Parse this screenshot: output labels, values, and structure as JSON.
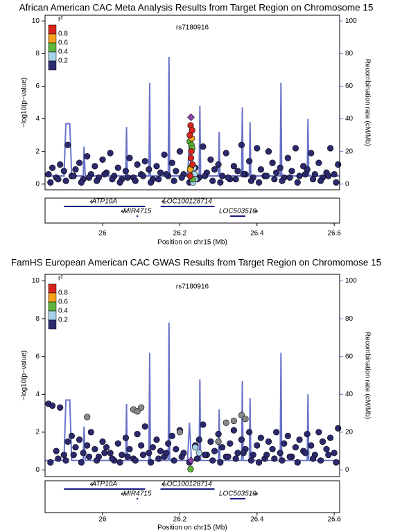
{
  "chart_data": [
    {
      "type": "scatter",
      "title": "African American  CAC Meta Analysis Results from Target Region on Chromosome 15",
      "annotation": "rs7180916",
      "x_label": "Position on chr15 (Mb)",
      "y_label": "−log10(p−value)",
      "y2_label": "Recombination rate (cM/Mb)",
      "xlim": [
        25.851,
        26.614
      ],
      "xticks": [
        26,
        26.2,
        26.4,
        26.6
      ],
      "ylim": [
        -0.35,
        10.35
      ],
      "yticks": [
        0,
        2,
        4,
        6,
        8,
        10
      ],
      "y2lim": [
        -3.5,
        103.5
      ],
      "y2ticks": [
        0,
        20,
        40,
        60,
        80,
        100
      ],
      "legend": {
        "title": "r²",
        "colors": [
          "#d7261e",
          "#f6a21a",
          "#5db53b",
          "#a7d3ea",
          "#2b2a6f"
        ],
        "labels": [
          0.8,
          0.6,
          0.4,
          0.2
        ]
      },
      "point_groups": [
        {
          "color": "#2b2a6f",
          "x": [
            25.86,
            25.87,
            25.88,
            25.89,
            25.9,
            25.91,
            25.92,
            25.93,
            25.94,
            25.95,
            25.96,
            25.97,
            25.98,
            25.99,
            26.0,
            26.01,
            26.02,
            26.03,
            26.04,
            26.05,
            26.06,
            26.07,
            26.08,
            26.09,
            26.1,
            26.11,
            26.12,
            26.13,
            26.14,
            26.15,
            26.16,
            26.17,
            26.18,
            26.19,
            26.2,
            26.21,
            26.24,
            26.25,
            26.26,
            26.27,
            26.28,
            26.29,
            26.3,
            26.31,
            26.32,
            26.33,
            26.34,
            26.35,
            26.36,
            26.37,
            26.38,
            26.39,
            26.4,
            26.41,
            26.42,
            26.43,
            26.44,
            26.45,
            26.46,
            26.47,
            26.48,
            26.49,
            26.5,
            26.51,
            26.52,
            26.53,
            26.54,
            26.55,
            26.56,
            26.57,
            26.58,
            26.59,
            26.6,
            26.61
          ],
          "y": [
            0.6,
            1.0,
            0.4,
            1.2,
            0.8,
            2.4,
            0.5,
            0.9,
            1.3,
            0.3,
            1.7,
            0.6,
            1.1,
            0.4,
            1.5,
            0.7,
            1.9,
            0.5,
            1.0,
            0.3,
            0.8,
            1.6,
            0.4,
            1.2,
            0.6,
            1.4,
            0.9,
            0.3,
            1.1,
            0.7,
            1.8,
            0.5,
            1.3,
            0.8,
            2.0,
            0.6,
            1.0,
            0.4,
            2.3,
            0.7,
            1.5,
            0.9,
            1.2,
            0.5,
            1.9,
            0.3,
            1.1,
            0.8,
            2.4,
            0.6,
            1.4,
            0.4,
            2.2,
            0.9,
            0.5,
            2.0,
            1.3,
            0.7,
            1.0,
            0.4,
            1.6,
            0.8,
            2.2,
            0.5,
            1.1,
            0.9,
            1.9,
            0.6,
            1.3,
            0.4,
            0.7,
            2.2,
            0.6,
            1.2
          ]
        },
        {
          "color": "#2b2a6f",
          "x": [
            25.865,
            25.885,
            25.905,
            25.925,
            25.945,
            25.965,
            25.985,
            26.005,
            26.025,
            26.045,
            26.065,
            26.085,
            26.105,
            26.125,
            26.145,
            26.165,
            26.185,
            26.205,
            26.225,
            26.245,
            26.265,
            26.285,
            26.305,
            26.325,
            26.345,
            26.365,
            26.385,
            26.405,
            26.425,
            26.445,
            26.465,
            26.485,
            26.505,
            26.525,
            26.545,
            26.565,
            26.585,
            26.605
          ],
          "y": [
            0.1,
            0.3,
            0.2,
            0.5,
            0.1,
            0.4,
            0.2,
            0.6,
            0.3,
            0.1,
            0.4,
            0.2,
            0.5,
            0.1,
            0.3,
            0.6,
            0.2,
            0.4,
            0.1,
            0.3,
            0.5,
            0.2,
            0.1,
            0.4,
            0.3,
            0.6,
            0.2,
            0.1,
            0.5,
            0.3,
            0.2,
            0.4,
            0.1,
            0.6,
            0.3,
            0.2,
            0.5,
            0.1
          ]
        },
        {
          "color": "#a7d3ea",
          "x": [
            26.236,
            26.238,
            26.24,
            26.234
          ],
          "y": [
            1.0,
            0.6,
            0.3,
            0.1
          ]
        },
        {
          "color": "#5db53b",
          "x": [
            26.226,
            26.23,
            26.232,
            26.228,
            26.233
          ],
          "y": [
            2.6,
            2.4,
            2.2,
            1.0,
            0.3
          ]
        },
        {
          "color": "#f6a21a",
          "x": [
            26.231,
            26.227
          ],
          "y": [
            2.8,
            0.9
          ]
        },
        {
          "color": "#d7261e",
          "x": [
            26.228,
            26.232,
            26.226,
            26.23,
            26.229,
            26.233,
            26.227
          ],
          "y": [
            3.6,
            3.3,
            3.0,
            2.0,
            1.6,
            1.2,
            0.5
          ]
        },
        {
          "color": "#8e44ad",
          "shape": "diamond",
          "x": [
            26.229
          ],
          "y": [
            4.1
          ]
        }
      ],
      "recombination": {
        "color": "#6a74c9",
        "axis": "y2",
        "x": [
          25.851,
          25.9,
          25.905,
          25.915,
          25.92,
          25.95,
          25.952,
          25.955,
          26.0,
          26.06,
          26.062,
          26.064,
          26.1,
          26.12,
          26.122,
          26.124,
          26.17,
          26.172,
          26.174,
          26.22,
          26.225,
          26.23,
          26.25,
          26.252,
          26.254,
          26.3,
          26.302,
          26.304,
          26.36,
          26.362,
          26.364,
          26.38,
          26.382,
          26.384,
          26.46,
          26.462,
          26.464,
          26.53,
          26.532,
          26.534,
          26.614
        ],
        "y": [
          5,
          5,
          37,
          37,
          5,
          5,
          23,
          5,
          5,
          5,
          35,
          5,
          5,
          5,
          62,
          5,
          5,
          78,
          5,
          5,
          25,
          5,
          5,
          48,
          5,
          5,
          32,
          5,
          5,
          47,
          5,
          5,
          38,
          5,
          5,
          62,
          5,
          5,
          40,
          5,
          5
        ]
      },
      "genes": [
        {
          "label": "ATP10A",
          "start": 25.9,
          "end": 26.11,
          "direction": "left"
        },
        {
          "label": "MIR4715",
          "start": 26.088,
          "end": 26.092,
          "direction": "left"
        },
        {
          "label": "LOC100128714",
          "start": 26.15,
          "end": 26.29,
          "direction": "left"
        },
        {
          "label": "LOC503519",
          "start": 26.33,
          "end": 26.37,
          "direction": "right"
        }
      ]
    },
    {
      "type": "scatter",
      "title": "FamHS European American CAC GWAS Results from Target Region on Chromomose 15",
      "annotation": "rs7180916",
      "x_label": "Position on chr15 (Mb)",
      "y_label": "−log10(p−value)",
      "y2_label": "Recombination rate (cM/Mb)",
      "xlim": [
        25.851,
        26.614
      ],
      "xticks": [
        26,
        26.2,
        26.4,
        26.6
      ],
      "ylim": [
        -0.35,
        10.35
      ],
      "yticks": [
        0,
        2,
        4,
        6,
        8,
        10
      ],
      "y2lim": [
        -3.5,
        103.5
      ],
      "y2ticks": [
        0,
        20,
        40,
        60,
        80,
        100
      ],
      "legend": {
        "title": "r²",
        "colors": [
          "#d7261e",
          "#f6a21a",
          "#5db53b",
          "#a7d3ea",
          "#2b2a6f"
        ],
        "labels": [
          0.8,
          0.6,
          0.4,
          0.2
        ]
      },
      "point_groups": [
        {
          "color": "#2b2a6f",
          "x": [
            25.86,
            25.87,
            25.88,
            25.89,
            25.9,
            25.91,
            25.92,
            25.93,
            25.94,
            25.95,
            25.96,
            25.97,
            25.98,
            25.99,
            26.0,
            26.01,
            26.02,
            26.03,
            26.04,
            26.05,
            26.06,
            26.07,
            26.08,
            26.09,
            26.1,
            26.11,
            26.12,
            26.13,
            26.14,
            26.15,
            26.16,
            26.17,
            26.18,
            26.19,
            26.2,
            26.21,
            26.24,
            26.25,
            26.26,
            26.27,
            26.28,
            26.29,
            26.3,
            26.31,
            26.32,
            26.33,
            26.34,
            26.35,
            26.36,
            26.37,
            26.38,
            26.39,
            26.4,
            26.41,
            26.42,
            26.43,
            26.44,
            26.45,
            26.46,
            26.47,
            26.48,
            26.49,
            26.5,
            26.51,
            26.52,
            26.53,
            26.54,
            26.55,
            26.56,
            26.57,
            26.58,
            26.59,
            26.6,
            26.61
          ],
          "y": [
            3.5,
            3.4,
            1.0,
            3.3,
            0.8,
            1.5,
            1.8,
            1.2,
            1.6,
            0.9,
            1.3,
            2.0,
            1.1,
            0.7,
            1.5,
            1.2,
            0.9,
            0.5,
            1.4,
            0.8,
            1.7,
            1.1,
            0.6,
            1.9,
            1.3,
            2.3,
            0.9,
            1.2,
            1.6,
            1.0,
            0.7,
            1.4,
            1.8,
            1.1,
            2.1,
            0.9,
            1.3,
            1.6,
            2.4,
            0.8,
            1.5,
            1.0,
            1.9,
            1.2,
            0.7,
            1.4,
            2.1,
            0.9,
            1.6,
            1.1,
            2.0,
            0.8,
            1.3,
            1.7,
            0.6,
            1.5,
            1.1,
            2.0,
            0.9,
            1.4,
            1.8,
            0.7,
            1.2,
            1.6,
            1.0,
            1.9,
            1.3,
            0.8,
            2.0,
            1.5,
            1.1,
            1.7,
            0.9,
            2.2
          ]
        },
        {
          "color": "#2b2a6f",
          "x": [
            25.865,
            25.885,
            25.905,
            25.925,
            25.945,
            25.965,
            25.985,
            26.005,
            26.025,
            26.045,
            26.065,
            26.085,
            26.105,
            26.125,
            26.145,
            26.165,
            26.185,
            26.205,
            26.225,
            26.245,
            26.265,
            26.285,
            26.305,
            26.325,
            26.345,
            26.365,
            26.385,
            26.405,
            26.425,
            26.445,
            26.465,
            26.485,
            26.505,
            26.525,
            26.545,
            26.565,
            26.585,
            26.605
          ],
          "y": [
            0.4,
            0.6,
            0.5,
            0.8,
            0.4,
            0.7,
            0.5,
            0.9,
            0.6,
            0.4,
            0.7,
            0.5,
            0.8,
            0.4,
            0.6,
            0.9,
            0.5,
            0.7,
            0.4,
            0.6,
            0.8,
            0.5,
            0.4,
            0.7,
            0.6,
            0.9,
            0.5,
            0.4,
            0.8,
            0.6,
            0.5,
            0.7,
            0.4,
            0.9,
            0.6,
            0.5,
            0.8,
            0.4
          ]
        },
        {
          "color": "#888888",
          "x": [
            26.08,
            26.09,
            26.1,
            26.32,
            26.34,
            26.36,
            26.37,
            25.96,
            26.2,
            26.3
          ],
          "y": [
            3.2,
            3.1,
            3.3,
            2.5,
            2.6,
            2.9,
            2.7,
            2.8,
            2.0,
            1.5
          ]
        },
        {
          "color": "#a7d3ea",
          "x": [
            26.24,
            26.25
          ],
          "y": [
            1.2,
            0.9
          ]
        },
        {
          "color": "#5db53b",
          "x": [
            26.228
          ],
          "y": [
            0.05
          ]
        },
        {
          "color": "#8e44ad",
          "shape": "diamond",
          "x": [
            26.229
          ],
          "y": [
            0.5
          ]
        }
      ],
      "recombination": {
        "color": "#6a74c9",
        "axis": "y2",
        "x": [
          25.851,
          25.9,
          25.905,
          25.915,
          25.92,
          25.95,
          25.952,
          25.955,
          26.0,
          26.06,
          26.062,
          26.064,
          26.1,
          26.12,
          26.122,
          26.124,
          26.17,
          26.172,
          26.174,
          26.22,
          26.225,
          26.23,
          26.25,
          26.252,
          26.254,
          26.3,
          26.302,
          26.304,
          26.36,
          26.362,
          26.364,
          26.38,
          26.382,
          26.384,
          26.46,
          26.462,
          26.464,
          26.53,
          26.532,
          26.534,
          26.614
        ],
        "y": [
          5,
          5,
          37,
          37,
          5,
          5,
          23,
          5,
          5,
          5,
          35,
          5,
          5,
          5,
          62,
          5,
          5,
          78,
          5,
          5,
          25,
          5,
          5,
          48,
          5,
          5,
          32,
          5,
          5,
          47,
          5,
          5,
          38,
          5,
          5,
          62,
          5,
          5,
          40,
          5,
          5
        ]
      },
      "genes": [
        {
          "label": "ATP10A",
          "start": 25.9,
          "end": 26.11,
          "direction": "left"
        },
        {
          "label": "MIR4715",
          "start": 26.088,
          "end": 26.092,
          "direction": "left"
        },
        {
          "label": "LOC100128714",
          "start": 26.15,
          "end": 26.29,
          "direction": "left"
        },
        {
          "label": "LOC503519",
          "start": 26.33,
          "end": 26.37,
          "direction": "right"
        }
      ]
    }
  ]
}
